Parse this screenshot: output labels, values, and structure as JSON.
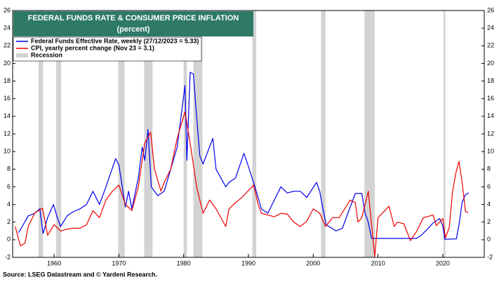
{
  "chart_data": {
    "type": "line",
    "title": "FEDERAL FUNDS RATE & CONSUMER PRICE INFLATION",
    "subtitle": "(percent)",
    "source": "Source: LSEG Datastream and © Yardeni Research.",
    "xlim": [
      1953.6,
      2026.4
    ],
    "xticks": [
      1960,
      1970,
      1980,
      1990,
      2000,
      2010,
      2020
    ],
    "ylim": [
      -2,
      26
    ],
    "yticks": [
      -2,
      0,
      2,
      4,
      6,
      8,
      10,
      12,
      14,
      16,
      18,
      20,
      22,
      24,
      26
    ],
    "y2lim": [
      -2,
      26
    ],
    "y2ticks": [
      -2,
      0,
      2,
      4,
      6,
      8,
      10,
      12,
      14,
      16,
      18,
      20,
      22,
      24,
      26
    ],
    "grid": false,
    "legend_position": "upper left",
    "recession_name": "Recession",
    "recession_color": "#d3d3d3",
    "recessions": [
      [
        1957.6,
        1958.3
      ],
      [
        1960.3,
        1961.1
      ],
      [
        1969.9,
        1970.9
      ],
      [
        1973.9,
        1975.2
      ],
      [
        1980.0,
        1980.5
      ],
      [
        1981.5,
        1982.9
      ],
      [
        1990.6,
        1991.2
      ],
      [
        2001.2,
        2001.9
      ],
      [
        2007.9,
        2009.5
      ],
      [
        2020.1,
        2020.4
      ]
    ],
    "series": [
      {
        "name": "Federal Funds Effective Rate, weekly (27/12/2023 = 5.33)",
        "color": "#0000ee",
        "x": [
          1954.5,
          1955,
          1956,
          1957,
          1957.8,
          1958.3,
          1959,
          1959.9,
          1960.5,
          1961,
          1962,
          1963,
          1964,
          1965,
          1966,
          1967,
          1968,
          1969.5,
          1970,
          1971,
          1971.5,
          1972,
          1973,
          1973.6,
          1974,
          1974.5,
          1975,
          1976,
          1977,
          1978,
          1979,
          1980.2,
          1980.5,
          1981,
          1981.5,
          1982,
          1982.5,
          1983,
          1984.5,
          1985,
          1986.5,
          1987,
          1988,
          1989.3,
          1990,
          1991,
          1992,
          1993,
          1994,
          1995,
          1996,
          1997,
          1998,
          1999,
          2000.5,
          2001,
          2001.5,
          2002,
          2003.5,
          2004.5,
          2005.5,
          2006.5,
          2007.5,
          2008,
          2008.5,
          2009,
          2015.9,
          2016.5,
          2017.5,
          2018.5,
          2019.5,
          2020,
          2020.3,
          2022.1,
          2022.5,
          2023,
          2023.5,
          2023.99
        ],
        "values": [
          0.8,
          1.4,
          2.7,
          3.0,
          3.5,
          0.7,
          2.5,
          4.0,
          2.5,
          1.5,
          2.7,
          3.2,
          3.5,
          4.0,
          5.5,
          4.0,
          6.0,
          9.2,
          8.5,
          3.7,
          5.5,
          3.5,
          7,
          10.5,
          9,
          12.5,
          6,
          5,
          5.5,
          8,
          10.5,
          17.5,
          9,
          19,
          18.8,
          14,
          9.5,
          8.6,
          11.5,
          8,
          6,
          6.5,
          7,
          9.8,
          8.3,
          6,
          3.5,
          3,
          4.5,
          6,
          5.3,
          5.5,
          5.5,
          4.8,
          6.5,
          5.5,
          3.5,
          1.7,
          1.0,
          1.3,
          3.3,
          5.25,
          5.25,
          3,
          2,
          0.15,
          0.15,
          0.4,
          1.1,
          1.9,
          2.4,
          1.6,
          0.05,
          0.1,
          1.7,
          4.3,
          5.1,
          5.33
        ]
      },
      {
        "name": "CPI, yearly percent change (Nov 23 = 3.1)",
        "color": "#ee0000",
        "x": [
          1954,
          1954.8,
          1955.5,
          1956,
          1957,
          1958.2,
          1959,
          1960,
          1961,
          1962,
          1963,
          1964,
          1965,
          1966,
          1967,
          1968,
          1969,
          1970,
          1971,
          1972,
          1973,
          1974,
          1974.9,
          1975.5,
          1976.5,
          1977,
          1978,
          1979,
          1980.2,
          1981,
          1982,
          1983,
          1984,
          1985,
          1986.5,
          1987,
          1988,
          1989,
          1990.8,
          1991.5,
          1992,
          1993,
          1994,
          1995,
          1996,
          1997,
          1998,
          1999,
          2000,
          2001,
          2001.9,
          2003,
          2004,
          2005.7,
          2006.5,
          2006.9,
          2007.5,
          2008.5,
          2009.5,
          2010,
          2011.7,
          2012.5,
          2013,
          2014,
          2015,
          2016,
          2017,
          2018.5,
          2019,
          2020,
          2020.4,
          2021,
          2021.5,
          2022,
          2022.5,
          2023,
          2023.5,
          2023.9
        ],
        "values": [
          1.5,
          -0.7,
          -0.4,
          1.5,
          3.0,
          3.6,
          0.5,
          1.7,
          1.0,
          1.2,
          1.3,
          1.3,
          1.7,
          3.3,
          2.5,
          4.5,
          5.5,
          6.2,
          4.0,
          3.3,
          6,
          11,
          12.2,
          8,
          5.5,
          6.5,
          8,
          11.5,
          14.5,
          11,
          6,
          3,
          4.5,
          3.5,
          1.5,
          3.5,
          4.2,
          4.8,
          6.2,
          4,
          3,
          2.8,
          2.6,
          3,
          2.9,
          2,
          1.5,
          2.1,
          3.5,
          3,
          1.5,
          2.5,
          2.5,
          4.5,
          4.2,
          2,
          2.5,
          5.5,
          -1.9,
          2.5,
          3.8,
          1.5,
          2,
          1.8,
          -0.1,
          1.0,
          2.5,
          2.8,
          1.6,
          2.4,
          0.2,
          1.4,
          5.4,
          7.5,
          8.9,
          6.4,
          3.2,
          3.1
        ]
      }
    ]
  }
}
